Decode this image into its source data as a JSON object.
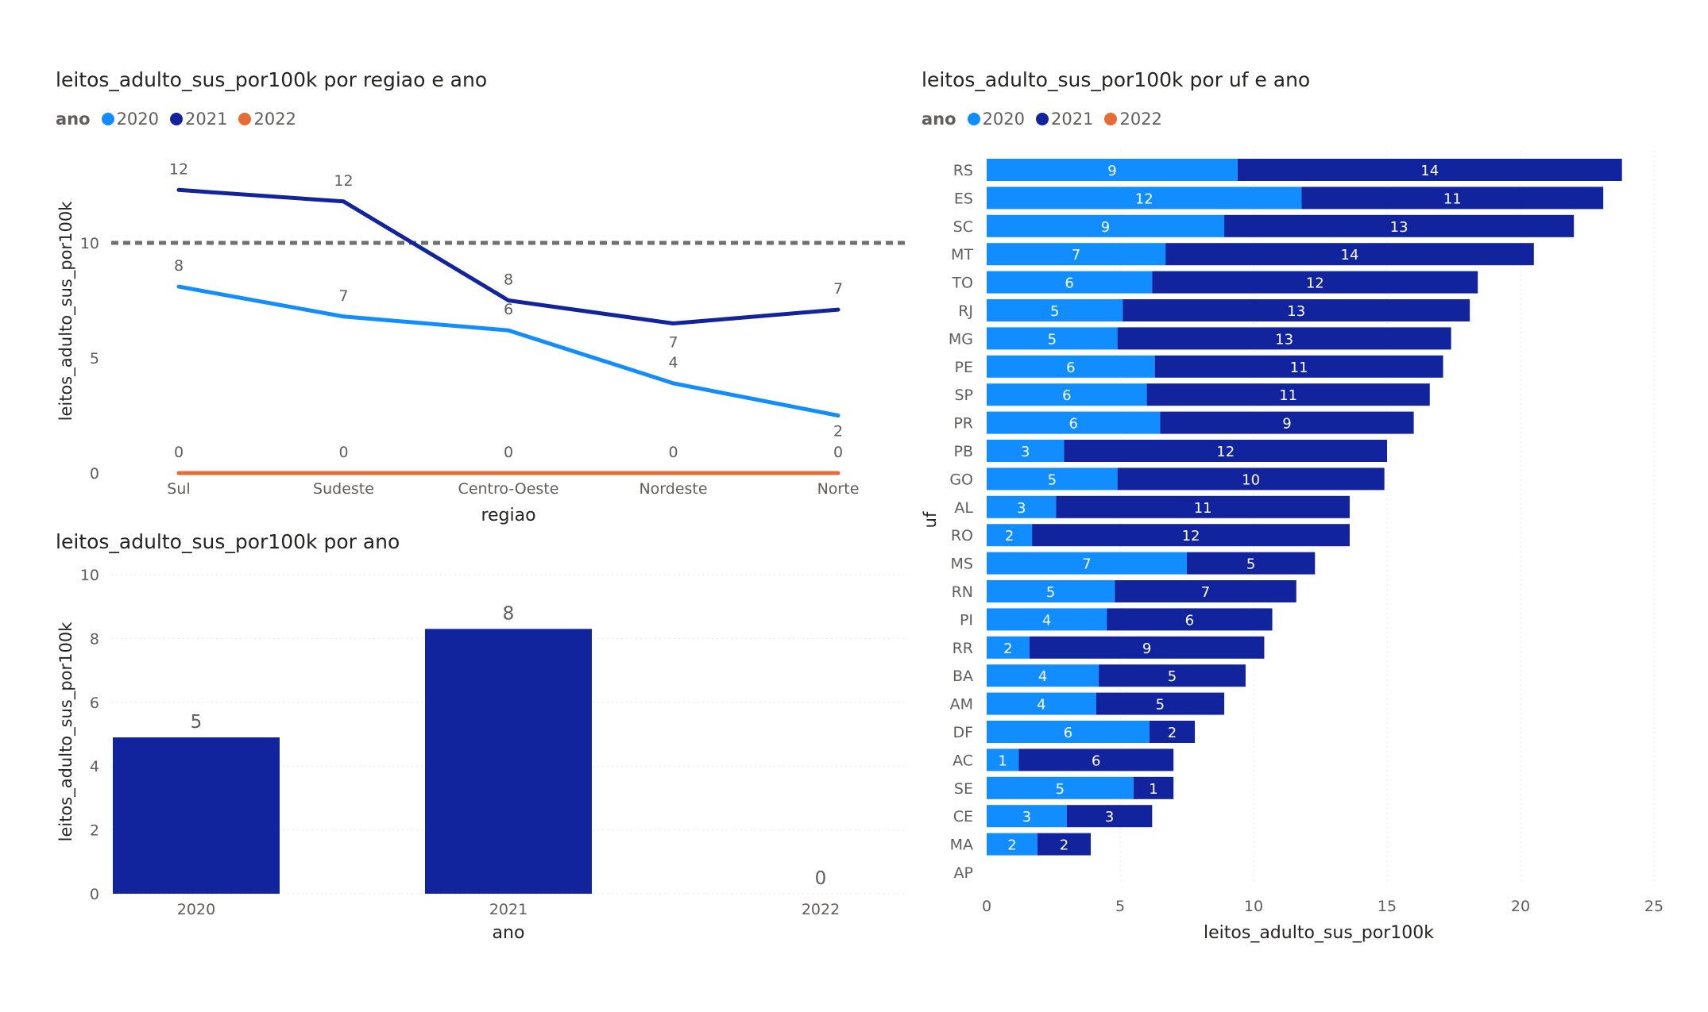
{
  "colors": {
    "2020": "#118dff",
    "2021": "#12239e",
    "2022": "#e66c37"
  },
  "chart_data": [
    {
      "type": "line",
      "title": "leitos_adulto_sus_por100k por regiao e ano",
      "legend_title": "ano",
      "legend_position": "top-left",
      "xlabel": "regiao",
      "ylabel": "leitos_adulto_sus_por100k",
      "categories": [
        "Sul",
        "Sudeste",
        "Centro-Oeste",
        "Nordeste",
        "Norte"
      ],
      "ylim": [
        0,
        12.5
      ],
      "yticks": [
        "0",
        "5",
        "10"
      ],
      "reference_line": 10,
      "series": [
        {
          "name": "2020",
          "values": [
            8.1,
            6.8,
            6.2,
            3.9,
            2.5
          ],
          "labels": [
            "8",
            "7",
            "6",
            "4",
            "2"
          ]
        },
        {
          "name": "2021",
          "values": [
            12.3,
            11.8,
            7.5,
            6.5,
            7.1
          ],
          "labels": [
            "12",
            "12",
            "8",
            "7",
            "7"
          ]
        },
        {
          "name": "2022",
          "values": [
            0,
            0,
            0,
            0,
            0
          ],
          "labels": [
            "0",
            "0",
            "0",
            "0",
            "0"
          ]
        }
      ]
    },
    {
      "type": "bar",
      "title": "leitos_adulto_sus_por100k por ano",
      "xlabel": "ano",
      "ylabel": "leitos_adulto_sus_por100k",
      "categories": [
        "2020",
        "2021",
        "2022"
      ],
      "values": [
        4.9,
        8.3,
        0
      ],
      "labels": [
        "5",
        "8",
        "0"
      ],
      "ylim": [
        0,
        10
      ],
      "yticks": [
        "0",
        "2",
        "4",
        "6",
        "8",
        "10"
      ]
    },
    {
      "type": "bar",
      "orientation": "horizontal",
      "stacked": true,
      "title": "leitos_adulto_sus_por100k por uf e ano",
      "legend_title": "ano",
      "legend_position": "top-left",
      "xlabel": "leitos_adulto_sus_por100k",
      "ylabel": "uf",
      "xlim": [
        0,
        25
      ],
      "xticks": [
        "0",
        "5",
        "10",
        "15",
        "20",
        "25"
      ],
      "categories": [
        "RS",
        "ES",
        "SC",
        "MT",
        "TO",
        "RJ",
        "MG",
        "PE",
        "SP",
        "PR",
        "PB",
        "GO",
        "AL",
        "RO",
        "MS",
        "RN",
        "PI",
        "RR",
        "BA",
        "AM",
        "DF",
        "AC",
        "SE",
        "CE",
        "MA",
        "AP"
      ],
      "series": [
        {
          "name": "2020",
          "values": [
            9.4,
            11.8,
            8.9,
            6.7,
            6.2,
            5.1,
            4.9,
            6.3,
            6.0,
            6.5,
            2.9,
            4.9,
            2.6,
            1.7,
            7.5,
            4.8,
            4.5,
            1.6,
            4.2,
            4.1,
            6.1,
            1.2,
            5.5,
            3.0,
            1.9,
            0
          ],
          "labels": [
            "9",
            "12",
            "9",
            "7",
            "6",
            "5",
            "5",
            "6",
            "6",
            "6",
            "3",
            "5",
            "3",
            "2",
            "7",
            "5",
            "4",
            "2",
            "4",
            "4",
            "6",
            "1",
            "5",
            "3",
            "2",
            ""
          ]
        },
        {
          "name": "2021",
          "values": [
            14.4,
            11.3,
            13.1,
            13.8,
            12.2,
            13.0,
            12.5,
            10.8,
            10.6,
            9.5,
            12.1,
            10.0,
            11.0,
            11.9,
            4.8,
            6.8,
            6.2,
            8.8,
            5.5,
            4.8,
            1.7,
            5.8,
            1.5,
            3.2,
            2.0,
            0
          ],
          "labels": [
            "14",
            "11",
            "13",
            "14",
            "12",
            "13",
            "13",
            "11",
            "11",
            "9",
            "12",
            "10",
            "11",
            "12",
            "5",
            "7",
            "6",
            "9",
            "5",
            "5",
            "2",
            "6",
            "1",
            "3",
            "2",
            ""
          ]
        },
        {
          "name": "2022",
          "values": [
            0,
            0,
            0,
            0,
            0,
            0,
            0,
            0,
            0,
            0,
            0,
            0,
            0,
            0,
            0,
            0,
            0,
            0,
            0,
            0,
            0,
            0,
            0,
            0,
            0,
            0
          ],
          "labels": [
            "",
            "",
            "",
            "",
            "",
            "",
            "",
            "",
            "",
            "",
            "",
            "",
            "",
            "",
            "",
            "",
            "",
            "",
            "",
            "",
            "",
            "",
            "",
            "",
            "",
            ""
          ]
        }
      ]
    }
  ]
}
